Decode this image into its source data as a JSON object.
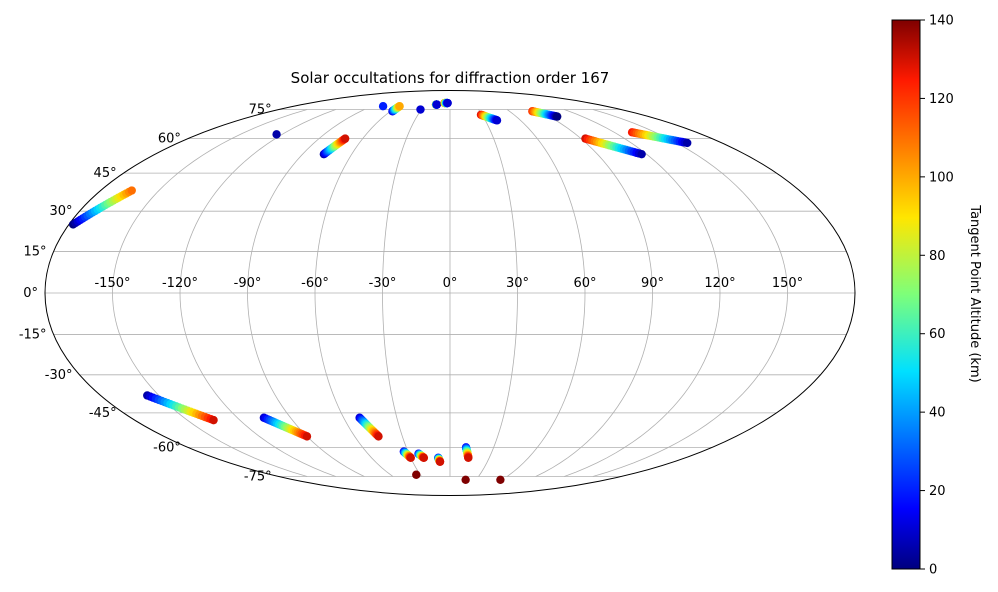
{
  "chart_data": {
    "type": "scatter",
    "projection": "mollweide",
    "title": "Solar occultations for diffraction order 167",
    "grid": true,
    "lon_ticks": [
      "-150°",
      "-120°",
      "-90°",
      "-60°",
      "-30°",
      "0°",
      "30°",
      "60°",
      "90°",
      "120°",
      "150°"
    ],
    "lat_ticks": [
      "75°",
      "60°",
      "45°",
      "30°",
      "15°",
      "0°",
      "-15°",
      "-30°",
      "-45°",
      "-60°",
      "-75°"
    ],
    "colorbar": {
      "label": "Tangent Point Altitude (km)",
      "min": 0,
      "max": 140,
      "ticks": [
        "0",
        "20",
        "40",
        "60",
        "80",
        "100",
        "120",
        "140"
      ],
      "colormap": "jet"
    },
    "tracks": [
      {
        "lon_start": -178,
        "lat_start": 25,
        "lon_end": -164,
        "lat_end": 38,
        "alt_start": 0,
        "alt_end": 110
      },
      {
        "lon_start": -124,
        "lat_start": 62,
        "lon_end": -124,
        "lat_end": 62,
        "alt_start": 5,
        "alt_end": 5
      },
      {
        "lon_start": -77,
        "lat_start": 53,
        "lon_end": -72,
        "lat_end": 60,
        "alt_start": 5,
        "alt_end": 130
      },
      {
        "lon_start": -77,
        "lat_start": 77,
        "lon_end": -77,
        "lat_end": 77,
        "alt_start": 20,
        "alt_end": 20
      },
      {
        "lon_start": -58,
        "lat_start": 74,
        "lon_end": -58,
        "lat_end": 77,
        "alt_start": 10,
        "alt_end": 100
      },
      {
        "lon_start": -31,
        "lat_start": 75,
        "lon_end": -31,
        "lat_end": 75,
        "alt_start": 10,
        "alt_end": 10
      },
      {
        "lon_start": -17,
        "lat_start": 78,
        "lon_end": -16,
        "lat_end": 78,
        "alt_start": 100,
        "alt_end": 10
      },
      {
        "lon_start": -7,
        "lat_start": 79,
        "lon_end": -3,
        "lat_end": 79,
        "alt_start": 110,
        "alt_end": 10
      },
      {
        "lon_start": 29,
        "lat_start": 72,
        "lon_end": 40,
        "lat_end": 69,
        "alt_start": 130,
        "alt_end": 10
      },
      {
        "lon_start": 83,
        "lat_start": 74,
        "lon_end": 97,
        "lat_end": 71,
        "alt_start": 120,
        "alt_end": 0
      },
      {
        "lon_start": 93,
        "lat_start": 60,
        "lon_end": 117,
        "lat_end": 53,
        "alt_start": 130,
        "alt_end": 5
      },
      {
        "lon_start": 133,
        "lat_start": 63,
        "lon_end": 157,
        "lat_end": 58,
        "alt_start": 125,
        "alt_end": 5
      },
      {
        "lon_start": -156,
        "lat_start": -38,
        "lon_end": -135,
        "lat_end": -48,
        "alt_start": 5,
        "alt_end": 130
      },
      {
        "lon_start": -105,
        "lat_start": -47,
        "lon_end": -90,
        "lat_end": -55,
        "alt_start": 10,
        "alt_end": 130
      },
      {
        "lon_start": -51,
        "lat_start": -47,
        "lon_end": -45,
        "lat_end": -55,
        "alt_start": 10,
        "alt_end": 130
      },
      {
        "lon_start": -33,
        "lat_start": -62,
        "lon_end": -30,
        "lat_end": -65,
        "alt_start": 15,
        "alt_end": 130
      },
      {
        "lon_start": -23,
        "lat_start": -63,
        "lon_end": -20,
        "lat_end": -65,
        "alt_start": 15,
        "alt_end": 130
      },
      {
        "lon_start": -34,
        "lat_start": -74,
        "lon_end": -34,
        "lat_end": -74,
        "alt_start": 140,
        "alt_end": 140
      },
      {
        "lon_start": -9,
        "lat_start": -65,
        "lon_end": -8,
        "lat_end": -67,
        "alt_start": 15,
        "alt_end": 130
      },
      {
        "lon_start": 11,
        "lat_start": -60,
        "lon_end": 14,
        "lat_end": -65,
        "alt_start": 15,
        "alt_end": 130
      },
      {
        "lon_start": 18,
        "lat_start": -77,
        "lon_end": 18,
        "lat_end": -77,
        "alt_start": 140,
        "alt_end": 140
      },
      {
        "lon_start": 58,
        "lat_start": -77,
        "lon_end": 58,
        "lat_end": -77,
        "alt_start": 140,
        "alt_end": 140
      }
    ]
  }
}
